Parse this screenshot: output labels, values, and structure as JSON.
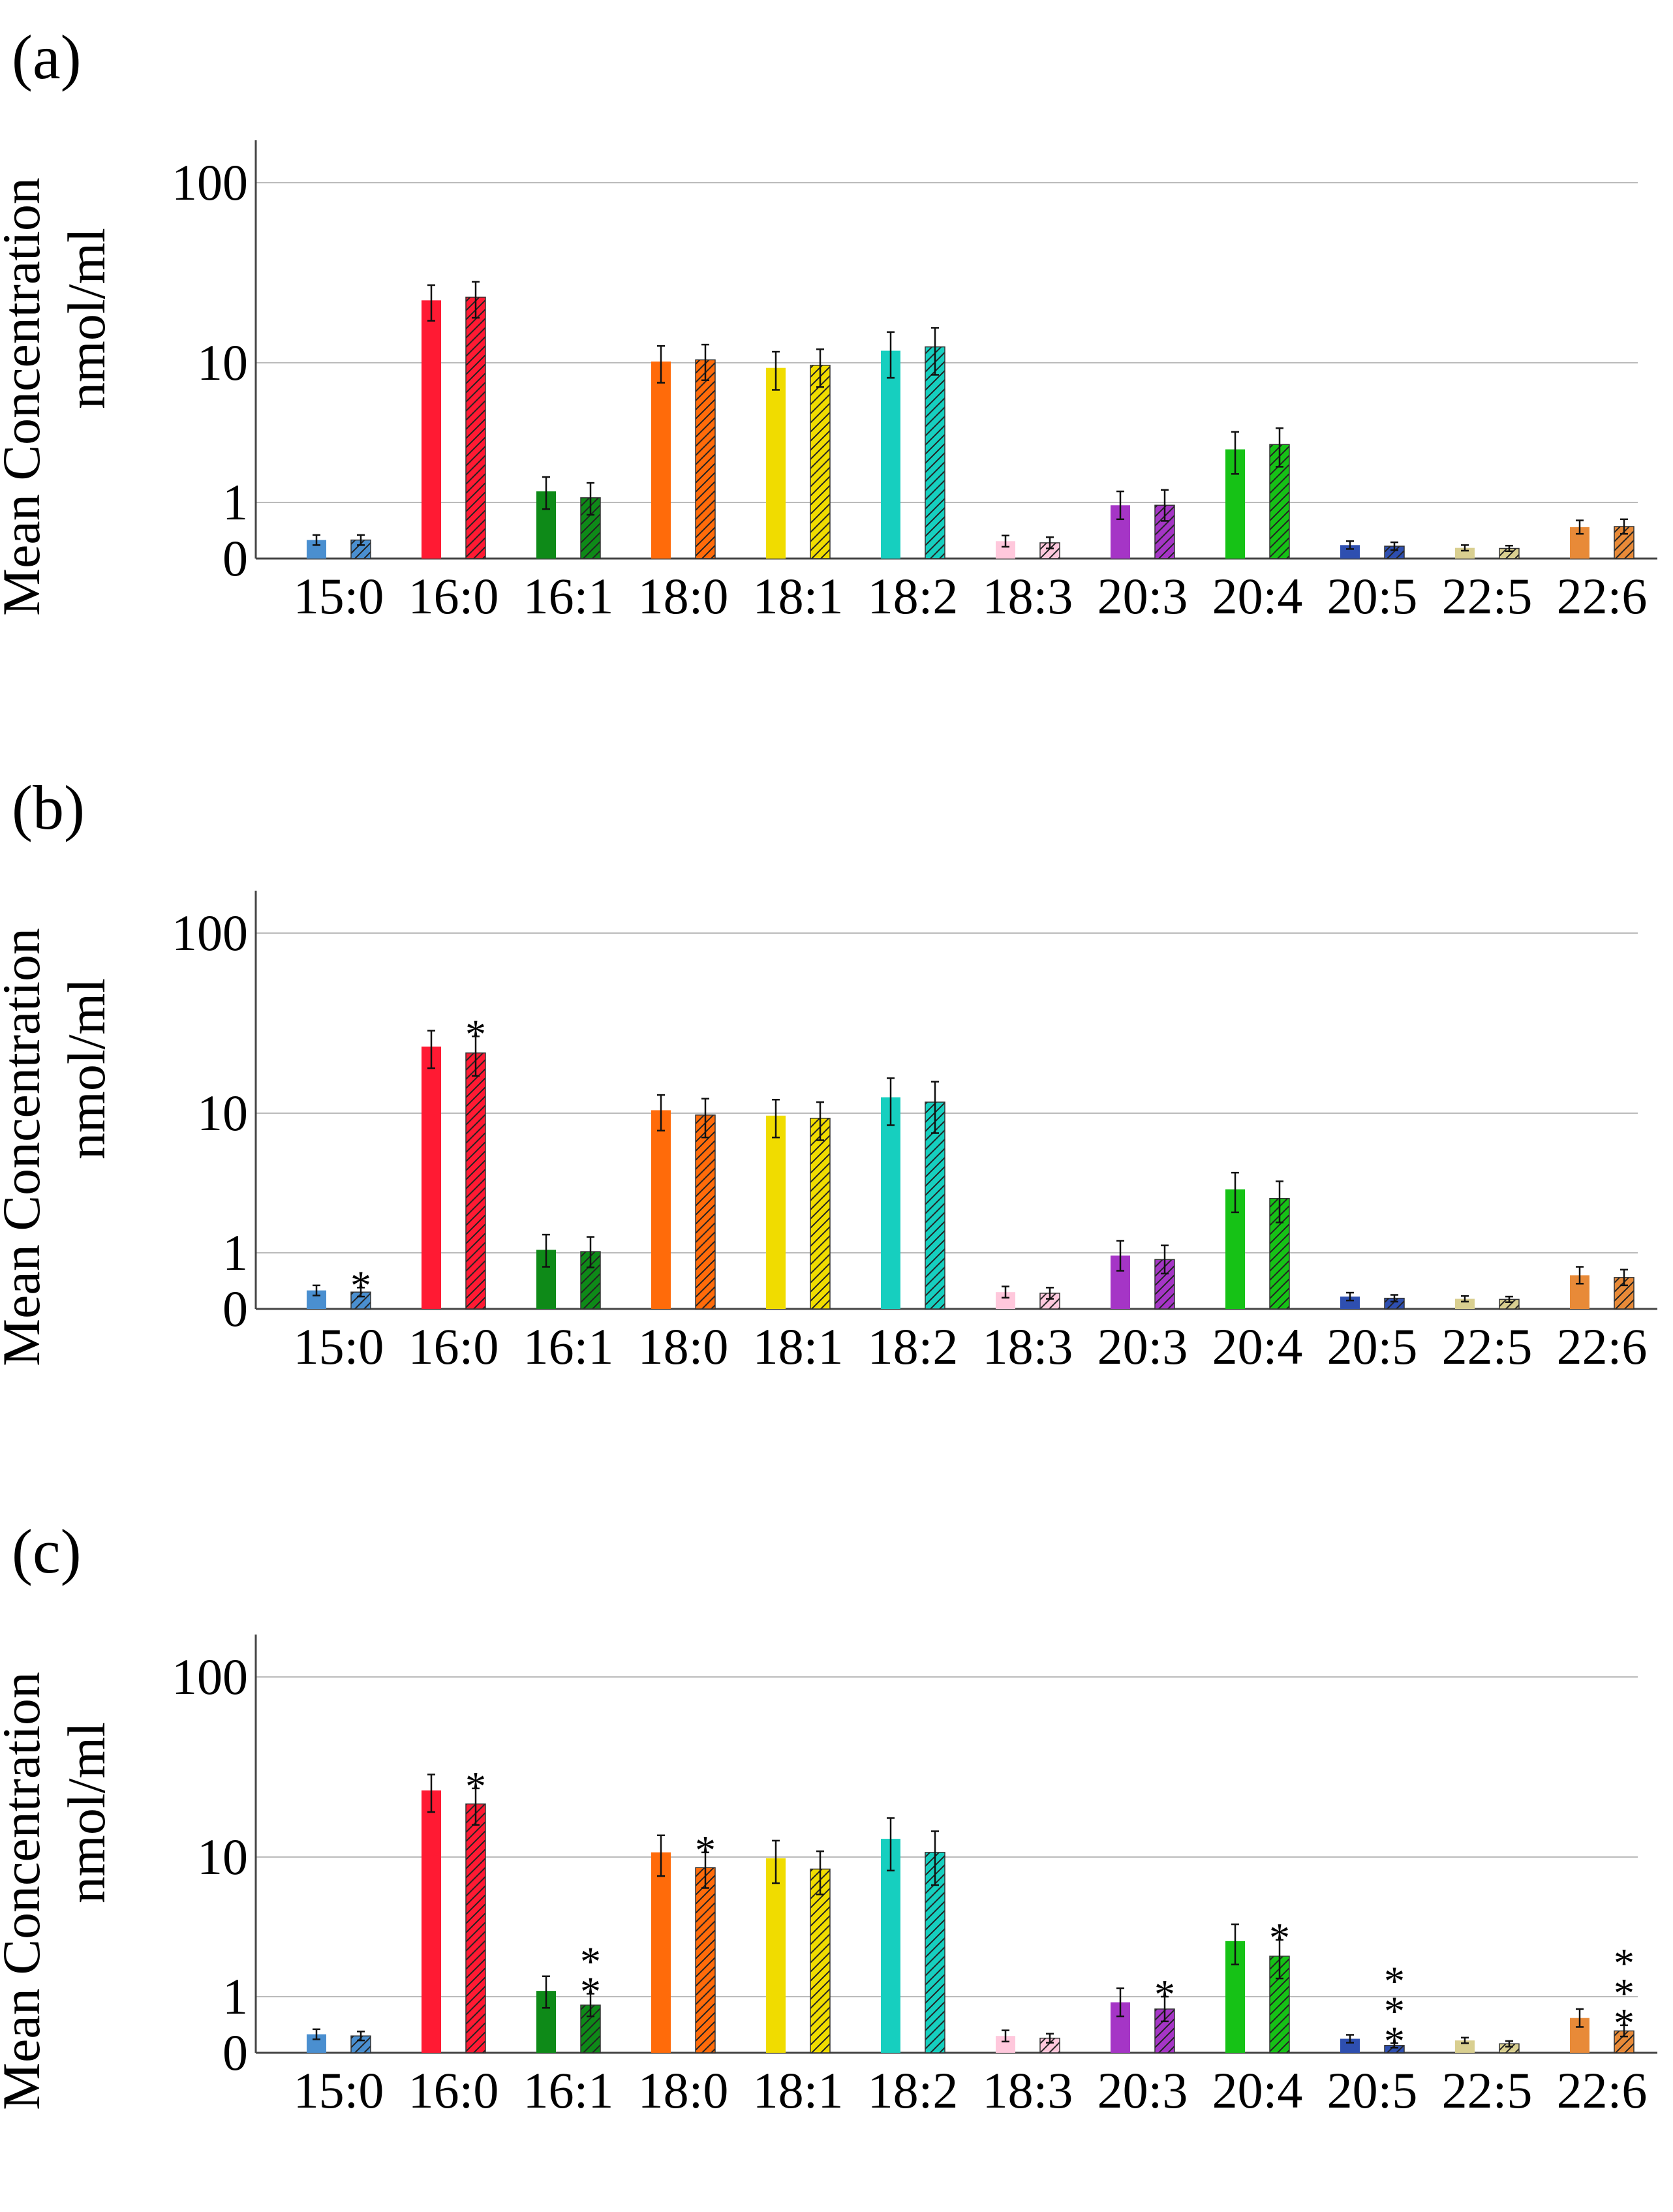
{
  "figure": {
    "y_axis_label_line1": "Mean Concentration",
    "y_axis_label_line2": "nmol/ml",
    "asterisk": "*"
  },
  "chart_data": [
    {
      "type": "bar",
      "panel_label": "(a)",
      "ylabel": "Mean Concentration nmol/ml",
      "y_scale": "log-like (0 baseline, 1, 10, 100)",
      "yticks": [
        "100",
        "10",
        "1",
        "0"
      ],
      "grid": true,
      "categories": [
        "15:0",
        "16:0",
        "16:1",
        "18:0",
        "18:1",
        "18:2",
        "18:3",
        "20:3",
        "20:4",
        "20:5",
        "22:5",
        "22:6"
      ],
      "colors": [
        "#4a8fd0",
        "#ff1a33",
        "#0e8a18",
        "#ff6b0a",
        "#f0dc00",
        "#16cfbf",
        "#ffc8dc",
        "#a535c6",
        "#16c216",
        "#2e4fb0",
        "#d9cf90",
        "#e88a38"
      ],
      "series": [
        {
          "name": "solid",
          "hatch": false,
          "values": [
            0.33,
            28,
            1.2,
            10.2,
            9.2,
            12.2,
            0.31,
            0.95,
            2.4,
            0.24,
            0.19,
            0.56
          ],
          "errors": [
            0.09,
            8,
            0.32,
            3,
            2.8,
            4.4,
            0.1,
            0.25,
            0.8,
            0.07,
            0.05,
            0.12
          ],
          "significance": [
            "",
            "",
            "",
            "",
            "",
            "",
            "",
            "",
            "",
            "",
            "",
            ""
          ]
        },
        {
          "name": "hatched",
          "hatch": true,
          "values": [
            0.33,
            29.5,
            1.08,
            10.5,
            9.6,
            13,
            0.28,
            0.95,
            2.6,
            0.22,
            0.18,
            0.57
          ],
          "errors": [
            0.09,
            8.5,
            0.3,
            3,
            2.9,
            4.8,
            0.1,
            0.28,
            0.8,
            0.07,
            0.05,
            0.13
          ],
          "significance": [
            "",
            "",
            "",
            "",
            "",
            "",
            "",
            "",
            "",
            "",
            "",
            ""
          ]
        }
      ]
    },
    {
      "type": "bar",
      "panel_label": "(b)",
      "ylabel": "Mean Concentration nmol/ml",
      "y_scale": "log-like (0 baseline, 1, 10, 100)",
      "yticks": [
        "100",
        "10",
        "1",
        "0"
      ],
      "grid": true,
      "categories": [
        "15:0",
        "16:0",
        "16:1",
        "18:0",
        "18:1",
        "18:2",
        "18:3",
        "20:3",
        "20:4",
        "20:5",
        "22:5",
        "22:6"
      ],
      "colors": [
        "#4a8fd0",
        "#ff1a33",
        "#0e8a18",
        "#ff6b0a",
        "#f0dc00",
        "#16cfbf",
        "#ffc8dc",
        "#a535c6",
        "#16c216",
        "#2e4fb0",
        "#d9cf90",
        "#e88a38"
      ],
      "series": [
        {
          "name": "solid",
          "hatch": false,
          "values": [
            0.33,
            30,
            1.05,
            10.5,
            9.6,
            13,
            0.3,
            0.95,
            2.85,
            0.22,
            0.18,
            0.6
          ],
          "errors": [
            0.09,
            9,
            0.3,
            3,
            2.9,
            4.8,
            0.1,
            0.27,
            0.9,
            0.07,
            0.05,
            0.15
          ],
          "significance": [
            "",
            "",
            "",
            "",
            "",
            "",
            "",
            "",
            "",
            "",
            "",
            ""
          ]
        },
        {
          "name": "hatched",
          "hatch": true,
          "values": [
            0.3,
            27,
            1.02,
            9.7,
            9.2,
            12,
            0.28,
            0.88,
            2.45,
            0.19,
            0.17,
            0.56
          ],
          "errors": [
            0.08,
            8.5,
            0.28,
            3,
            2.8,
            4.8,
            0.1,
            0.25,
            0.8,
            0.06,
            0.05,
            0.14
          ],
          "significance": [
            "*",
            "*",
            "",
            "",
            "",
            "",
            "",
            "",
            "",
            "",
            "",
            ""
          ]
        }
      ]
    },
    {
      "type": "bar",
      "panel_label": "(c)",
      "ylabel": "Mean Concentration nmol/ml",
      "y_scale": "log-like (0 baseline, 1, 10, 100)",
      "yticks": [
        "100",
        "10",
        "1",
        "0"
      ],
      "grid": true,
      "categories": [
        "15:0",
        "16:0",
        "16:1",
        "18:0",
        "18:1",
        "18:2",
        "18:3",
        "20:3",
        "20:4",
        "20:5",
        "22:5",
        "22:6"
      ],
      "colors": [
        "#4a8fd0",
        "#ff1a33",
        "#0e8a18",
        "#ff6b0a",
        "#f0dc00",
        "#16cfbf",
        "#ffc8dc",
        "#a535c6",
        "#16c216",
        "#2e4fb0",
        "#d9cf90",
        "#e88a38"
      ],
      "series": [
        {
          "name": "solid",
          "hatch": false,
          "values": [
            0.33,
            30,
            1.1,
            10.8,
            9.8,
            13.5,
            0.3,
            0.9,
            2.5,
            0.25,
            0.22,
            0.62
          ],
          "errors": [
            0.09,
            9,
            0.3,
            3.5,
            3.3,
            5.5,
            0.1,
            0.25,
            0.8,
            0.07,
            0.05,
            0.16
          ],
          "significance": [
            "",
            "",
            "",
            "",
            "",
            "",
            "",
            "",
            "",
            "",
            "",
            ""
          ]
        },
        {
          "name": "hatched",
          "hatch": true,
          "values": [
            0.3,
            24,
            0.85,
            8.4,
            8.2,
            10.8,
            0.26,
            0.78,
            1.95,
            0.13,
            0.16,
            0.39
          ],
          "errors": [
            0.08,
            7,
            0.2,
            2.4,
            2.8,
            4.5,
            0.08,
            0.22,
            0.6,
            0.04,
            0.05,
            0.1
          ],
          "significance": [
            "",
            "*",
            "**",
            "*",
            "",
            "",
            "",
            "*",
            "*",
            "***",
            "",
            "***"
          ]
        }
      ]
    }
  ]
}
